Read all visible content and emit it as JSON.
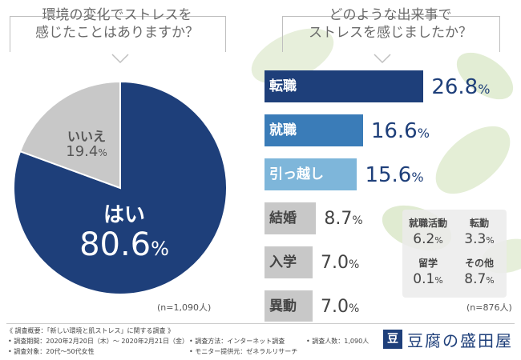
{
  "left_heading": [
    "環境の変化でストレスを",
    "感じたことはありますか？"
  ],
  "right_heading": [
    "どのような出来事で",
    "ストレスを感じましたか？"
  ],
  "chart_data": [
    {
      "type": "pie",
      "categories": [
        "はい",
        "いいえ"
      ],
      "values": [
        80.6,
        19.4
      ],
      "labels": [
        {
          "name": "はい",
          "value": "80.6",
          "unit": "%"
        },
        {
          "name": "いいえ",
          "value": "19.4",
          "unit": "%"
        }
      ],
      "note": "(n=1,090人)",
      "colors": [
        "#1e3f7a",
        "#c8c8c8"
      ]
    },
    {
      "type": "bar",
      "categories": [
        "転職",
        "就職",
        "引っ越し",
        "結婚",
        "入学",
        "異動",
        "就職活動",
        "転勤",
        "留学",
        "その他"
      ],
      "values": [
        26.8,
        16.6,
        15.6,
        8.7,
        7.0,
        7.0,
        6.2,
        3.3,
        0.1,
        8.7
      ],
      "bars": [
        {
          "label": "転職",
          "value": "26.8",
          "unit": "%",
          "color": "#1e3f7a"
        },
        {
          "label": "就職",
          "value": "16.6",
          "unit": "%",
          "color": "#3a7cb8"
        },
        {
          "label": "引っ越し",
          "value": "15.6",
          "unit": "%",
          "color": "#7eb6da"
        },
        {
          "label": "結婚",
          "value": "8.7",
          "unit": "%",
          "color": "#c8c8c8"
        },
        {
          "label": "入学",
          "value": "7.0",
          "unit": "%",
          "color": "#c8c8c8"
        },
        {
          "label": "異動",
          "value": "7.0",
          "unit": "%",
          "color": "#c8c8c8"
        }
      ],
      "others": [
        {
          "label": "就職活動",
          "value": "6.2",
          "unit": "%"
        },
        {
          "label": "転勤",
          "value": "3.3",
          "unit": "%"
        },
        {
          "label": "留学",
          "value": "0.1",
          "unit": "%"
        },
        {
          "label": "その他",
          "value": "8.7",
          "unit": "%"
        }
      ],
      "note": "(n=876人)"
    }
  ],
  "footer": {
    "title": "《 調査概要：「新しい環境と肌ストレス」に関する調査 》",
    "period": "• 調査期間：2020年2月20日（木）～ 2020年2月21日（金）",
    "target": "• 調査対象：20代～50代女性",
    "method": "• 調査方法：インターネット調査",
    "provider": "• モニター提供元：ゼネラルリサーチ",
    "count": "• 調査人数：1,090人"
  },
  "brand": {
    "mark": "豆",
    "name": "豆腐の盛田屋"
  }
}
